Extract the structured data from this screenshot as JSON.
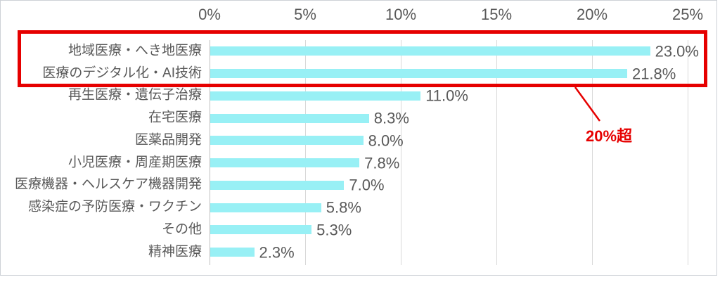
{
  "chart_data": {
    "type": "bar",
    "orientation": "horizontal",
    "title": "",
    "categories": [
      "地域医療・へき地医療",
      "医療のデジタル化・AI技術",
      "再生医療・遺伝子治療",
      "在宅医療",
      "医薬品開発",
      "小児医療・周産期医療",
      "医療機器・ヘルスケア機器開発",
      "感染症の予防医療・ワクチン",
      "その他",
      "精神医療"
    ],
    "values": [
      23.0,
      21.8,
      11.0,
      8.3,
      8.0,
      7.8,
      7.0,
      5.8,
      5.3,
      2.3
    ],
    "value_labels": [
      "23.0%",
      "21.8%",
      "11.0%",
      "8.3%",
      "8.0%",
      "7.8%",
      "7.0%",
      "5.8%",
      "5.3%",
      "2.3%"
    ],
    "xlim": [
      0,
      25
    ],
    "x_ticks": [
      {
        "value": 0,
        "label": "0%"
      },
      {
        "value": 5,
        "label": "5%"
      },
      {
        "value": 10,
        "label": "10%"
      },
      {
        "value": 15,
        "label": "15%"
      },
      {
        "value": 20,
        "label": "20%"
      },
      {
        "value": 25,
        "label": "25%"
      }
    ],
    "grid": true,
    "legend": null,
    "colors": {
      "bar": "#98F0F5",
      "grid": "#D9D9D9",
      "axis_line": "#BFBFBF",
      "text": "#595959",
      "frame_border": "#CDD1D6",
      "annotation_red": "#E60000"
    },
    "annotation": {
      "text": "20%超",
      "highlight_rows": [
        0,
        1
      ],
      "highlighted_categories": [
        "地域医療・へき地医療",
        "医療のデジタル化・AI技術"
      ]
    }
  }
}
